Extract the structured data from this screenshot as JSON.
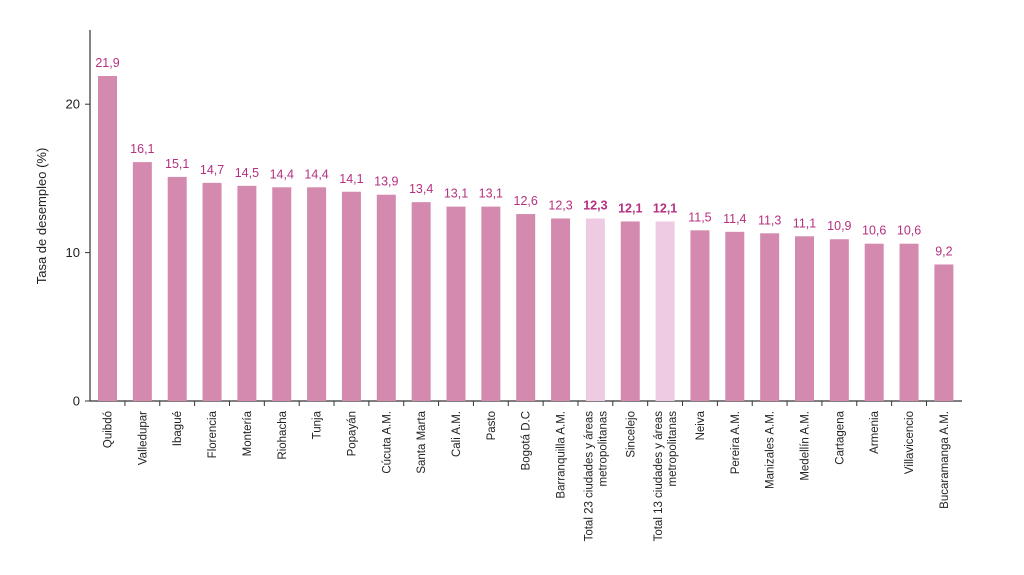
{
  "chart_data": {
    "type": "bar",
    "title": "",
    "xlabel": "",
    "ylabel": "Tasa de desempleo (%)",
    "ylim": [
      0,
      25
    ],
    "yticks": [
      "0",
      "10",
      "20"
    ],
    "grid": false,
    "colors": {
      "bar": "#d48aae",
      "bar_highlight": "#eecbe2",
      "label": "#b5307f",
      "axis": "#333333"
    },
    "categories": [
      "Quibdó",
      "Valledupar",
      "Ibagué",
      "Florencia",
      "Montería",
      "Riohacha",
      "Tunja",
      "Popayán",
      "Cúcuta A.M.",
      "Santa Marta",
      "Cali A.M.",
      "Pasto",
      "Bogotá D.C",
      "Barranquilla A.M.",
      "Total 23 ciudades y áreas metropolitanas",
      "Sincelejo",
      "Total 13 ciudades y áreas metropolitanas",
      "Neiva",
      "Pereira A.M.",
      "Manizales A.M.",
      "Medellín A.M.",
      "Cartagena",
      "Armenia",
      "Villavicencio",
      "Bucaramanga A.M."
    ],
    "category_lines": [
      [
        "Quibdó"
      ],
      [
        "Valledupar"
      ],
      [
        "Ibagué"
      ],
      [
        "Florencia"
      ],
      [
        "Montería"
      ],
      [
        "Riohacha"
      ],
      [
        "Tunja"
      ],
      [
        "Popayán"
      ],
      [
        "Cúcuta A.M."
      ],
      [
        "Santa Marta"
      ],
      [
        "Cali A.M."
      ],
      [
        "Pasto"
      ],
      [
        "Bogotá D.C"
      ],
      [
        "Barranquilla A.M."
      ],
      [
        "Total 23 ciudades y áreas",
        "metropolitanas"
      ],
      [
        "Sincelejo"
      ],
      [
        "Total 13 ciudades y áreas",
        "metropolitanas"
      ],
      [
        "Neiva"
      ],
      [
        "Pereira A.M."
      ],
      [
        "Manizales A.M."
      ],
      [
        "Medellín A.M."
      ],
      [
        "Cartagena"
      ],
      [
        "Armenia"
      ],
      [
        "Villavicencio"
      ],
      [
        "Bucaramanga A.M."
      ]
    ],
    "values": [
      21.9,
      16.1,
      15.1,
      14.7,
      14.5,
      14.4,
      14.4,
      14.1,
      13.9,
      13.4,
      13.1,
      13.1,
      12.6,
      12.3,
      12.3,
      12.1,
      12.1,
      11.5,
      11.4,
      11.3,
      11.1,
      10.9,
      10.6,
      10.6,
      9.2
    ],
    "data_labels": [
      "21,9",
      "16,1",
      "15,1",
      "14,7",
      "14,5",
      "14,4",
      "14,4",
      "14,1",
      "13,9",
      "13,4",
      "13,1",
      "13,1",
      "12,6",
      "12,3",
      "12,3",
      "12,1",
      "12,1",
      "11,5",
      "11,4",
      "11,3",
      "11,1",
      "10,9",
      "10,6",
      "10,6",
      "9,2"
    ],
    "highlight": [
      false,
      false,
      false,
      false,
      false,
      false,
      false,
      false,
      false,
      false,
      false,
      false,
      false,
      false,
      true,
      false,
      true,
      false,
      false,
      false,
      false,
      false,
      false,
      false,
      false
    ],
    "bold_labels": [
      false,
      false,
      false,
      false,
      false,
      false,
      false,
      false,
      false,
      false,
      false,
      false,
      false,
      false,
      true,
      true,
      true,
      false,
      false,
      false,
      false,
      false,
      false,
      false,
      false
    ]
  }
}
